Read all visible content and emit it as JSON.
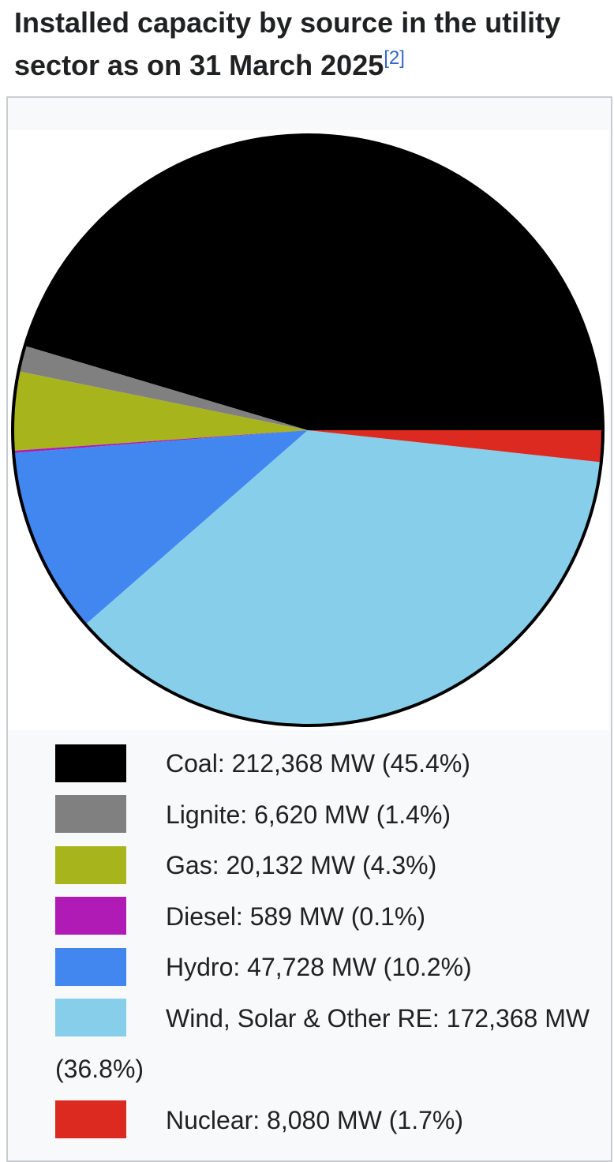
{
  "chart_data": {
    "type": "pie",
    "title": "Installed capacity by source in the utility sector as on 31 March 2025",
    "title_note": "[2]",
    "labels": [
      "Coal: 212,368 MW (45.4%)",
      "Lignite: 6,620 MW (1.4%)",
      "Gas: 20,132 MW (4.3%)",
      "Diesel: 589 MW (0.1%)",
      "Hydro: 47,728 MW (10.2%)",
      "Wind, Solar & Other RE: 172,368 MW (36.8%)",
      "Nuclear: 8,080 MW (1.7%)"
    ],
    "values": [
      212368,
      6620,
      20132,
      589,
      47728,
      172368,
      8080
    ],
    "colors": [
      "#000000",
      "#808080",
      "#a8b41c",
      "#b01ab5",
      "#4287f0",
      "#87ceeb",
      "#dc2a20"
    ]
  }
}
